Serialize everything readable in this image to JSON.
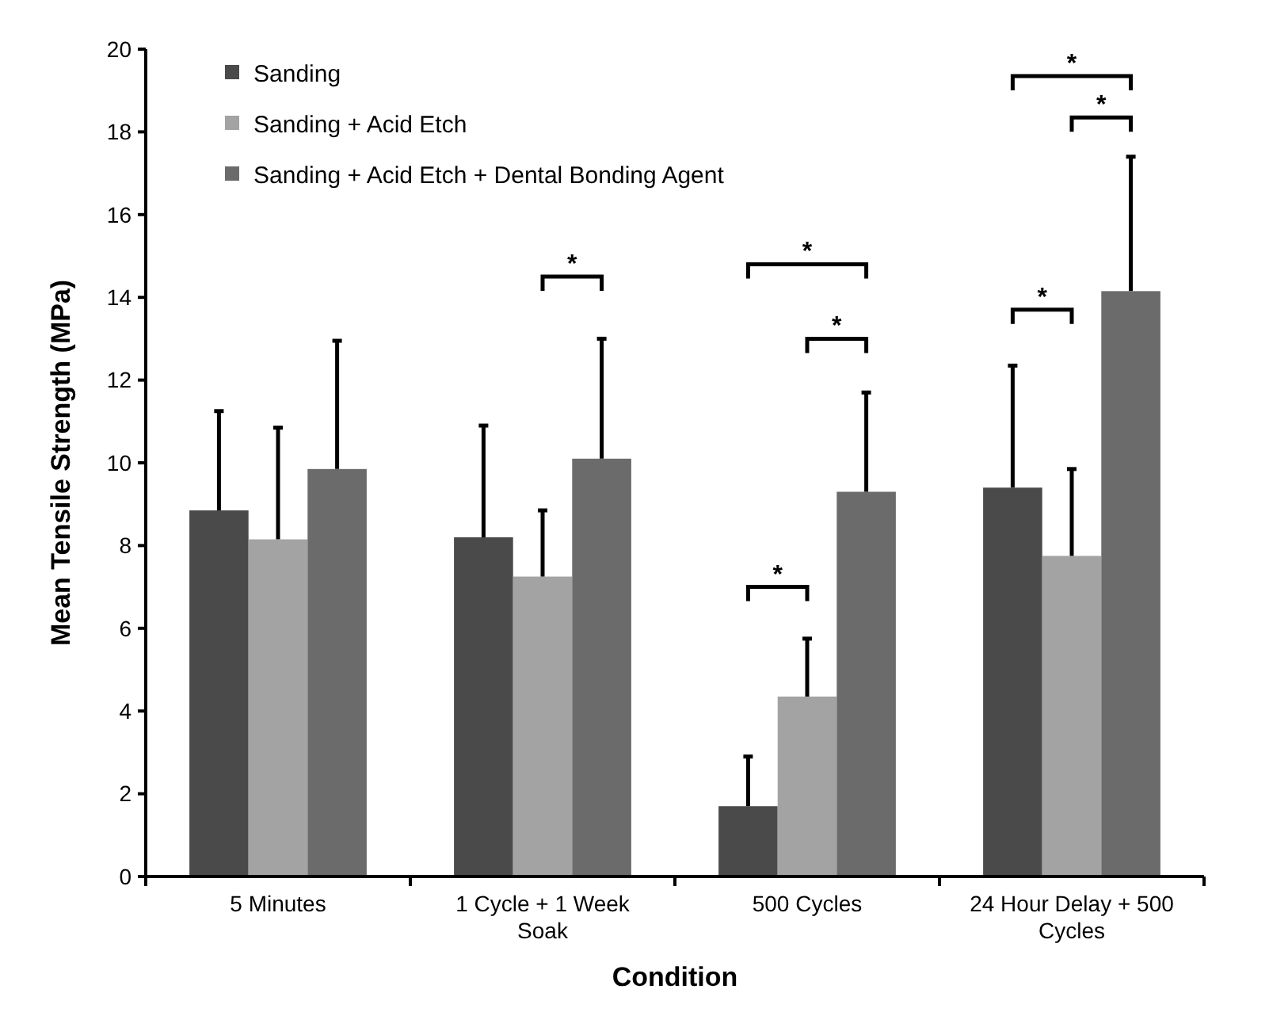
{
  "chart_data": {
    "type": "bar",
    "xlabel": "Condition",
    "ylabel": "Mean Tensile Strength (MPa)",
    "categories": [
      "5 Minutes",
      "1 Cycle + 1 Week Soak",
      "500 Cycles",
      "24 Hour Delay + 500 Cycles"
    ],
    "series": [
      {
        "name": "Sanding",
        "color": "#4a4a4a",
        "values": [
          8.85,
          8.2,
          1.7,
          9.4
        ],
        "errors": [
          [
            8.85,
            11.25
          ],
          [
            8.2,
            10.9
          ],
          [
            1.7,
            2.9
          ],
          [
            9.4,
            12.35
          ]
        ]
      },
      {
        "name": "Sanding + Acid Etch",
        "color": "#a3a3a3",
        "values": [
          8.15,
          7.25,
          4.35,
          7.75
        ],
        "errors": [
          [
            8.15,
            10.85
          ],
          [
            7.25,
            8.85
          ],
          [
            4.35,
            5.75
          ],
          [
            7.75,
            9.85
          ]
        ]
      },
      {
        "name": "Sanding + Acid Etch + Dental Bonding Agent",
        "color": "#6b6b6b",
        "values": [
          9.85,
          10.1,
          9.3,
          14.15
        ],
        "errors": [
          [
            9.85,
            12.95
          ],
          [
            10.1,
            13.0
          ],
          [
            9.3,
            11.7
          ],
          [
            14.15,
            17.4
          ]
        ]
      }
    ],
    "ylim": [
      0,
      20
    ],
    "yticks": [
      0,
      2,
      4,
      6,
      8,
      10,
      12,
      14,
      16,
      18,
      20
    ],
    "grid": false,
    "legend": "top left",
    "annotations": [
      "*",
      "*",
      "*",
      "*",
      "*",
      "*",
      "*"
    ]
  }
}
